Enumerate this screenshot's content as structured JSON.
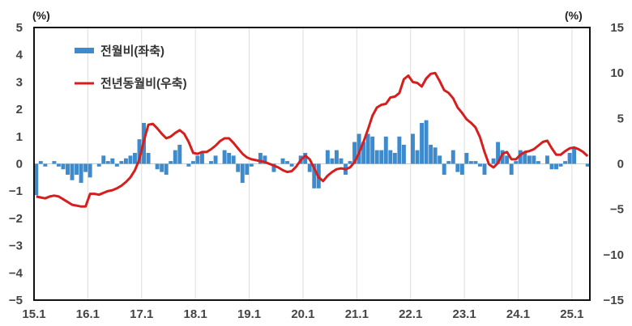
{
  "chart_data": {
    "type": "bar+line",
    "title": "",
    "xlabel": "",
    "left_axis": {
      "label": "(%)",
      "ylim": [
        -5,
        5
      ],
      "ticks": [
        -5,
        -4,
        -3,
        -2,
        -1,
        0,
        1,
        2,
        3,
        4,
        5
      ]
    },
    "right_axis": {
      "label": "(%)",
      "ylim": [
        -15,
        15
      ],
      "ticks": [
        -15,
        -10,
        -5,
        0,
        5,
        10,
        15
      ]
    },
    "x_tick_labels": [
      "15.1",
      "16.1",
      "17.1",
      "18.1",
      "19.1",
      "20.1",
      "21.1",
      "22.1",
      "23.1",
      "24.1",
      "25.1"
    ],
    "x_range": {
      "start": "2015.01",
      "end": "2025.04",
      "months": 124
    },
    "grid": {
      "vertical": true,
      "horizontal": false
    },
    "legend_position": "top-left inside",
    "series": [
      {
        "name": "전월비(좌축)",
        "type": "bar",
        "axis": "left",
        "color": "#3d8bcd",
        "values": [
          -1.15,
          0.1,
          -0.1,
          0,
          0.1,
          -0.1,
          -0.2,
          -0.4,
          -0.6,
          -0.4,
          -0.7,
          -0.3,
          -0.5,
          0,
          -0.1,
          0.3,
          0.1,
          0.2,
          -0.1,
          0.1,
          0.2,
          0.3,
          0.4,
          0.9,
          1.5,
          0.4,
          0,
          -0.2,
          -0.3,
          -0.4,
          0.1,
          0.5,
          0.7,
          0,
          -0.1,
          0.1,
          0.3,
          0.4,
          0,
          0.1,
          0.3,
          0,
          0.5,
          0.4,
          0.3,
          -0.3,
          -0.7,
          -0.4,
          -0.1,
          0,
          0.4,
          0.3,
          0,
          -0.3,
          0,
          0.2,
          0.1,
          -0.1,
          0,
          0.3,
          0.4,
          -0.3,
          -0.9,
          -0.9,
          0,
          0.5,
          0.2,
          0.5,
          0.2,
          -0.4,
          0.1,
          0.8,
          1.1,
          0.8,
          1.1,
          1.0,
          0.5,
          0.5,
          1.0,
          0.5,
          0.4,
          1.0,
          0.7,
          0,
          1.1,
          0.5,
          1.5,
          1.6,
          0.7,
          0.6,
          0.3,
          -0.4,
          0.1,
          0.5,
          -0.3,
          -0.4,
          0.4,
          0.1,
          0.1,
          -0.1,
          -0.4,
          0,
          0.2,
          0.8,
          0.5,
          0.3,
          -0.4,
          0.1,
          0.5,
          0.4,
          0.3,
          0.3,
          0.1,
          0,
          0.3,
          -0.2,
          -0.2,
          -0.1,
          0.1,
          0.4,
          0.6,
          0,
          0,
          -0.1
        ]
      },
      {
        "name": "전년동월비(우축)",
        "type": "line",
        "axis": "right",
        "color": "#d71e1e",
        "values": [
          -3.6,
          -3.7,
          -3.8,
          -3.6,
          -3.5,
          -3.6,
          -3.9,
          -4.2,
          -4.5,
          -4.6,
          -4.7,
          -4.7,
          -3.3,
          -3.3,
          -3.4,
          -3.2,
          -3.0,
          -2.9,
          -2.7,
          -2.4,
          -2.0,
          -1.5,
          -0.7,
          0.5,
          2.5,
          4.3,
          4.4,
          3.9,
          3.3,
          2.8,
          3.0,
          3.4,
          3.7,
          3.3,
          2.4,
          1.2,
          1.1,
          1.3,
          1.3,
          1.6,
          2.0,
          2.5,
          2.8,
          2.8,
          2.3,
          1.7,
          1.1,
          0.7,
          0.5,
          0.4,
          0.3,
          0.2,
          0.0,
          -0.2,
          -0.4,
          -0.7,
          -0.9,
          -0.8,
          -0.3,
          0.4,
          0.9,
          0.5,
          -0.5,
          -1.5,
          -1.9,
          -1.3,
          -0.9,
          -0.6,
          -0.5,
          -0.6,
          -0.4,
          0.2,
          1.2,
          2.4,
          3.8,
          5.3,
          6.2,
          6.5,
          6.6,
          7.3,
          7.4,
          7.8,
          9.3,
          9.7,
          9.0,
          8.9,
          8.5,
          9.4,
          9.9,
          10.0,
          9.1,
          8.1,
          7.8,
          7.2,
          6.2,
          5.6,
          4.9,
          4.5,
          4.0,
          2.9,
          1.3,
          -0.05,
          -0.4,
          0.1,
          1.1,
          1.3,
          0.5,
          0.5,
          1.0,
          1.3,
          1.4,
          1.6,
          2.0,
          2.4,
          2.55,
          1.7,
          1.0,
          1.0,
          1.4,
          1.7,
          1.8,
          1.6,
          1.3,
          0.85
        ]
      }
    ]
  },
  "legend": {
    "items": [
      {
        "label": "전월비(좌축)",
        "kind": "bar",
        "color": "#3d8bcd"
      },
      {
        "label": "전년동월비(우축)",
        "kind": "line",
        "color": "#d71e1e"
      }
    ]
  },
  "axes": {
    "left_unit": "(%)",
    "right_unit": "(%)"
  },
  "colors": {
    "bar": "#3d8bcd",
    "line": "#d71e1e",
    "grid": "#dddddd",
    "frame": "#111111",
    "zero_line": "#cccccc"
  }
}
